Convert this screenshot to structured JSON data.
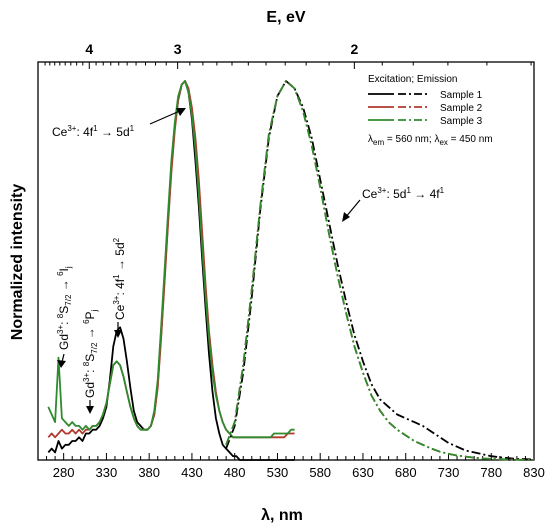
{
  "chart_data": {
    "type": "line",
    "xlabel": "λ, nm",
    "ylabel": "Normalized intensity",
    "top_axis_label": "E, eV",
    "xlim": [
      250,
      830
    ],
    "ylim": [
      0,
      1.05
    ],
    "x_ticks": [
      280,
      330,
      380,
      430,
      480,
      530,
      580,
      630,
      680,
      730,
      780,
      830
    ],
    "top_ticks": [
      4,
      3,
      2
    ],
    "grid": false,
    "legend": {
      "placement": "top-right",
      "header": "Excitation; Emission",
      "entries": [
        "Sample 1",
        "Sample 2",
        "Sample 3"
      ],
      "note_em_label": "em",
      "note_em_value": " = 560 nm; ",
      "note_ex_label": "ex",
      "note_ex_value": " = 450 nm"
    },
    "colors": {
      "sample1": "#000000",
      "sample2": "#b03a2e",
      "sample3": "#2e8b2e"
    },
    "annotations": {
      "ce_4f_5d1": {
        "base": "Ce",
        "sup": "3+",
        "rest": ": 4f",
        "sup2": "1",
        "arrow": " → 5d",
        "sup3": "1"
      },
      "ce_5d_4f1": {
        "base": "Ce",
        "sup": "3+",
        "rest": ": 5d",
        "sup2": "1",
        "arrow": " → 4f",
        "sup3": "1"
      },
      "ce_4f_5d2": {
        "base": "Ce",
        "sup": "3+",
        "rest": ": 4f",
        "sup2": "1",
        "arrow": " → 5d",
        "sup3": "2"
      },
      "gd_6i": {
        "base": "Gd",
        "sup": "3+",
        "rest": ": ",
        "sup2": "8",
        "mid": "S",
        "sub": "7/2",
        "arrow": " → ",
        "sup3": "6",
        "end": "I",
        "sub2": "j"
      },
      "gd_6p": {
        "base": "Gd",
        "sup": "3+",
        "rest": ": ",
        "sup2": "8",
        "mid": "S",
        "sub": "7/2",
        "arrow": " → ",
        "sup3": "6",
        "end": "P",
        "sub2": "j"
      }
    },
    "series": [
      {
        "name": "Sample 1",
        "kind": "excitation",
        "color": "#000000",
        "dash": "solid",
        "x": [
          262,
          266,
          270,
          274,
          278,
          282,
          286,
          290,
          294,
          298,
          302,
          306,
          310,
          314,
          318,
          322,
          326,
          330,
          334,
          338,
          342,
          346,
          350,
          354,
          358,
          362,
          366,
          370,
          374,
          378,
          382,
          386,
          390,
          394,
          398,
          402,
          406,
          410,
          414,
          418,
          422,
          426,
          430,
          434,
          438,
          442,
          446,
          450,
          454,
          458,
          462,
          466,
          470,
          474,
          478,
          482,
          486,
          490,
          494,
          498,
          502,
          506,
          510,
          514,
          518,
          522,
          526,
          530,
          534,
          538,
          542,
          546,
          550
        ],
        "y": [
          0.02,
          0.03,
          0.02,
          0.05,
          0.03,
          0.04,
          0.04,
          0.05,
          0.05,
          0.06,
          0.05,
          0.07,
          0.07,
          0.08,
          0.08,
          0.09,
          0.11,
          0.14,
          0.21,
          0.3,
          0.34,
          0.35,
          0.32,
          0.26,
          0.19,
          0.13,
          0.1,
          0.09,
          0.08,
          0.08,
          0.09,
          0.12,
          0.2,
          0.33,
          0.48,
          0.63,
          0.77,
          0.88,
          0.95,
          0.99,
          1.0,
          0.97,
          0.9,
          0.79,
          0.67,
          0.53,
          0.4,
          0.28,
          0.18,
          0.11,
          0.07,
          0.04,
          0.03,
          0.02,
          0.01,
          0.01,
          0.0,
          0.0,
          0.0,
          0.0,
          0.0,
          0.0,
          0.0,
          0.0,
          0.0,
          0.0,
          0.0,
          0.0,
          0.0,
          0.0,
          0.0,
          0.0,
          0.0
        ]
      },
      {
        "name": "Sample 2",
        "kind": "excitation",
        "color": "#b03a2e",
        "dash": "solid",
        "x": [
          262,
          266,
          270,
          274,
          278,
          282,
          286,
          290,
          294,
          298,
          302,
          306,
          310,
          314,
          318,
          322,
          326,
          330,
          334,
          338,
          342,
          346,
          350,
          354,
          358,
          362,
          366,
          370,
          374,
          378,
          382,
          386,
          390,
          394,
          398,
          402,
          406,
          410,
          414,
          418,
          422,
          426,
          430,
          434,
          438,
          442,
          446,
          450,
          454,
          458,
          462,
          466,
          470,
          474,
          478,
          482,
          486,
          490,
          494,
          498,
          502,
          506,
          510,
          514,
          518,
          522,
          526,
          530,
          534,
          538,
          542,
          546,
          550
        ],
        "y": [
          0.06,
          0.07,
          0.06,
          0.07,
          0.08,
          0.07,
          0.07,
          0.08,
          0.07,
          0.08,
          0.07,
          0.08,
          0.08,
          0.09,
          0.09,
          0.1,
          0.12,
          0.15,
          0.2,
          0.25,
          0.26,
          0.25,
          0.22,
          0.18,
          0.14,
          0.11,
          0.09,
          0.08,
          0.08,
          0.08,
          0.09,
          0.12,
          0.19,
          0.32,
          0.47,
          0.62,
          0.76,
          0.87,
          0.95,
          0.99,
          1.0,
          0.98,
          0.93,
          0.85,
          0.74,
          0.6,
          0.46,
          0.34,
          0.25,
          0.18,
          0.13,
          0.1,
          0.08,
          0.07,
          0.06,
          0.06,
          0.06,
          0.06,
          0.06,
          0.06,
          0.06,
          0.06,
          0.06,
          0.06,
          0.06,
          0.06,
          0.06,
          0.06,
          0.06,
          0.06,
          0.07,
          0.07,
          0.07
        ]
      },
      {
        "name": "Sample 3",
        "kind": "excitation",
        "color": "#2e8b2e",
        "dash": "solid",
        "x": [
          262,
          266,
          270,
          274,
          278,
          282,
          286,
          290,
          294,
          298,
          302,
          306,
          310,
          314,
          318,
          322,
          326,
          330,
          334,
          338,
          342,
          346,
          350,
          354,
          358,
          362,
          366,
          370,
          374,
          378,
          382,
          386,
          390,
          394,
          398,
          402,
          406,
          410,
          414,
          418,
          422,
          426,
          430,
          434,
          438,
          442,
          446,
          450,
          454,
          458,
          462,
          466,
          470,
          474,
          478,
          482,
          486,
          490,
          494,
          498,
          502,
          506,
          510,
          514,
          518,
          522,
          526,
          530,
          534,
          538,
          542,
          546,
          550
        ],
        "y": [
          0.14,
          0.12,
          0.1,
          0.27,
          0.11,
          0.1,
          0.09,
          0.1,
          0.09,
          0.09,
          0.08,
          0.09,
          0.08,
          0.09,
          0.09,
          0.1,
          0.12,
          0.15,
          0.2,
          0.25,
          0.26,
          0.25,
          0.22,
          0.18,
          0.14,
          0.11,
          0.09,
          0.08,
          0.08,
          0.08,
          0.09,
          0.13,
          0.21,
          0.35,
          0.5,
          0.65,
          0.79,
          0.89,
          0.96,
          0.99,
          1.0,
          0.97,
          0.91,
          0.82,
          0.7,
          0.56,
          0.43,
          0.32,
          0.23,
          0.17,
          0.13,
          0.1,
          0.08,
          0.07,
          0.06,
          0.06,
          0.06,
          0.06,
          0.06,
          0.06,
          0.06,
          0.06,
          0.06,
          0.06,
          0.06,
          0.06,
          0.07,
          0.07,
          0.07,
          0.07,
          0.07,
          0.08,
          0.08
        ]
      },
      {
        "name": "Sample 1",
        "kind": "emission",
        "color": "#000000",
        "dash": "dash-dot",
        "x": [
          470,
          480,
          490,
          500,
          510,
          520,
          530,
          540,
          550,
          560,
          570,
          580,
          590,
          600,
          610,
          620,
          630,
          640,
          650,
          660,
          670,
          680,
          690,
          700,
          710,
          720,
          730,
          740,
          750,
          760,
          770,
          780,
          790,
          800,
          810,
          820,
          830
        ],
        "y": [
          0.03,
          0.09,
          0.23,
          0.43,
          0.66,
          0.85,
          0.96,
          1.0,
          0.98,
          0.93,
          0.85,
          0.74,
          0.63,
          0.52,
          0.42,
          0.33,
          0.26,
          0.2,
          0.16,
          0.14,
          0.12,
          0.11,
          0.1,
          0.09,
          0.075,
          0.06,
          0.045,
          0.035,
          0.025,
          0.02,
          0.015,
          0.01,
          0.007,
          0.005,
          0.003,
          0.002,
          0.001
        ]
      },
      {
        "name": "Sample 2",
        "kind": "emission",
        "color": "#b03a2e",
        "dash": "dash-dot",
        "x": [
          470,
          480,
          490,
          500,
          510,
          520,
          530,
          540,
          550,
          560,
          570,
          580,
          590,
          600,
          610,
          620,
          630,
          640,
          650,
          660,
          670,
          680,
          690,
          700,
          710,
          720,
          730,
          740,
          750,
          760,
          770,
          780,
          790,
          800,
          810,
          820,
          830
        ],
        "y": [
          0.04,
          0.1,
          0.25,
          0.45,
          0.67,
          0.86,
          0.96,
          1.0,
          0.98,
          0.92,
          0.83,
          0.72,
          0.6,
          0.49,
          0.39,
          0.3,
          0.23,
          0.17,
          0.13,
          0.1,
          0.08,
          0.065,
          0.05,
          0.04,
          0.03,
          0.022,
          0.016,
          0.012,
          0.009,
          0.006,
          0.004,
          0.003,
          0.002,
          0.001,
          0.001,
          0.0,
          0.0
        ]
      },
      {
        "name": "Sample 3",
        "kind": "emission",
        "color": "#2e8b2e",
        "dash": "dash-dot",
        "x": [
          470,
          480,
          490,
          500,
          510,
          520,
          530,
          540,
          550,
          560,
          570,
          580,
          590,
          600,
          610,
          620,
          630,
          640,
          650,
          660,
          670,
          680,
          690,
          700,
          710,
          720,
          730,
          740,
          750,
          760,
          770,
          780,
          790,
          800,
          810,
          820,
          830
        ],
        "y": [
          0.04,
          0.1,
          0.25,
          0.45,
          0.67,
          0.86,
          0.96,
          1.0,
          0.98,
          0.92,
          0.83,
          0.72,
          0.6,
          0.49,
          0.39,
          0.3,
          0.23,
          0.17,
          0.13,
          0.1,
          0.08,
          0.065,
          0.05,
          0.04,
          0.03,
          0.022,
          0.016,
          0.012,
          0.009,
          0.006,
          0.004,
          0.003,
          0.002,
          0.001,
          0.001,
          0.0,
          0.0
        ]
      }
    ]
  }
}
